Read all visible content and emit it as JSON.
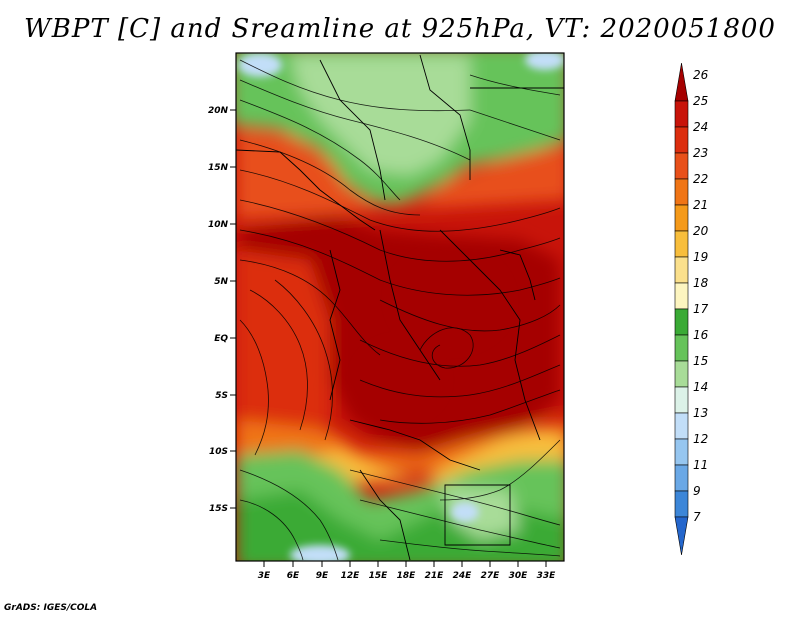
{
  "title": "WBPT [C] and Sreamline at 925hPa, VT: 2020051800",
  "credit": "GrADS: IGES/COLA",
  "lat_ticks": [
    "20N",
    "15N",
    "10N",
    "5N",
    "EQ",
    "5S",
    "10S",
    "15S"
  ],
  "lon_ticks": [
    "3E",
    "6E",
    "9E",
    "12E",
    "15E",
    "18E",
    "21E",
    "24E",
    "27E",
    "30E",
    "33E"
  ],
  "colorbar": {
    "labels": [
      "26",
      "25",
      "24",
      "23",
      "22",
      "21",
      "20",
      "19",
      "18",
      "17",
      "16",
      "15",
      "14",
      "13",
      "12",
      "11",
      "9",
      "7"
    ],
    "colors": [
      "#a50000",
      "#c8140a",
      "#dc2e0f",
      "#e8501a",
      "#f07516",
      "#f59a1a",
      "#f8be3c",
      "#fbe08c",
      "#fdf5c0",
      "#3aaa35",
      "#66c35a",
      "#a8dc98",
      "#dcf2e8",
      "#c2def8",
      "#96c6f0",
      "#6aa8e6",
      "#3c86d8",
      "#2466cc"
    ]
  },
  "field_colors": {
    "hot_core": "#a50000",
    "hot": "#c8140a",
    "warm": "#e8501a",
    "orange": "#f59a1a",
    "cool_green": "#66c35a",
    "pale_green": "#a8dc98",
    "pale_blue": "#c2def8"
  }
}
